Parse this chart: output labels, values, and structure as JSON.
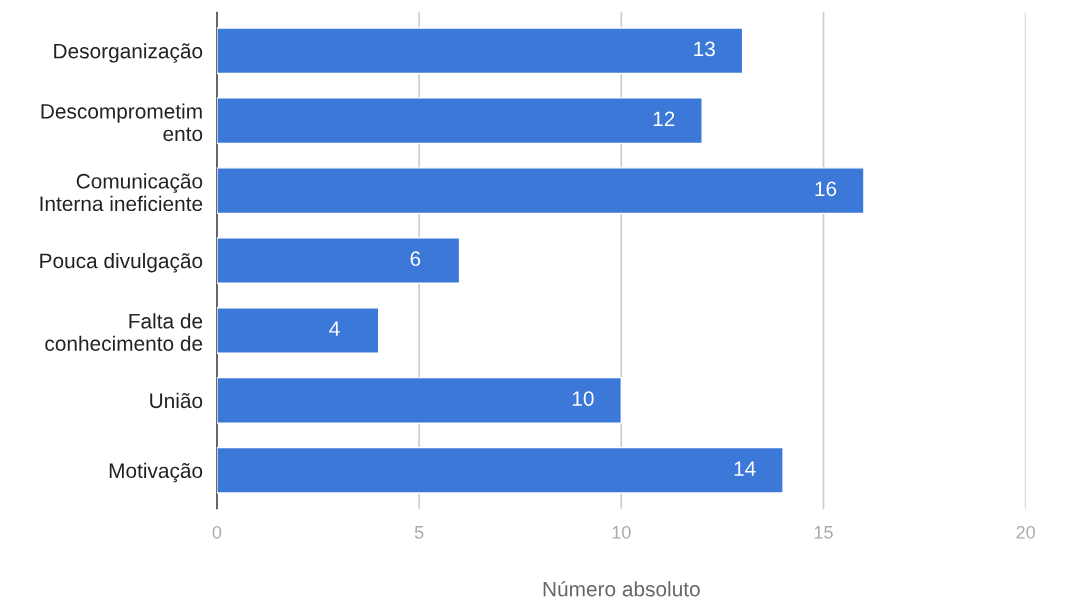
{
  "chart_data": {
    "type": "bar",
    "orientation": "horizontal",
    "xlabel": "Número absoluto",
    "categories": [
      "Desorganização",
      "Descomprometim\nento",
      "Comunicação\nInterna ineficiente",
      "Pouca divulgação",
      "Falta de\nconhecimento de",
      "União",
      "Motivação"
    ],
    "values": [
      13,
      12,
      16,
      6,
      4,
      10,
      14
    ],
    "color": "#3c78d8",
    "xlim": [
      0,
      20
    ],
    "xticks": [
      0,
      5,
      10,
      15,
      20
    ],
    "grid": "x",
    "data_labels": true
  }
}
